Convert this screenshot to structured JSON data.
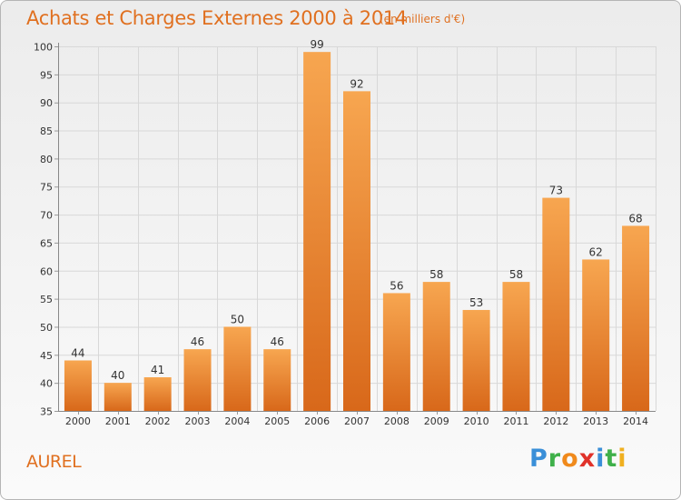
{
  "header": {
    "title": "Achats et Charges Externes 2000 à 2014",
    "subtitle": "(en milliers d'€)"
  },
  "commune": "AUREL",
  "brand": {
    "letters": [
      "P",
      "r",
      "o",
      "x",
      "i",
      "t",
      "i"
    ],
    "colors": [
      "#3a8fd8",
      "#3fb04a",
      "#f08a1c",
      "#e0322a",
      "#3a8fd8",
      "#3fb04a",
      "#f0b020"
    ]
  },
  "colors": {
    "bar_top": "#f7a650",
    "bar_bottom": "#d8681a",
    "text": "#333333",
    "accent": "#e07020",
    "grid": "#d8d8d8"
  },
  "chart_data": {
    "type": "bar",
    "categories": [
      "2000",
      "2001",
      "2002",
      "2003",
      "2004",
      "2005",
      "2006",
      "2007",
      "2008",
      "2009",
      "2010",
      "2011",
      "2012",
      "2013",
      "2014"
    ],
    "values": [
      44,
      40,
      41,
      46,
      50,
      46,
      99,
      92,
      56,
      58,
      53,
      58,
      73,
      62,
      68
    ],
    "yticks": [
      35,
      40,
      45,
      50,
      55,
      60,
      65,
      70,
      75,
      80,
      85,
      90,
      95,
      100
    ],
    "ylim": [
      35,
      100
    ],
    "grid": true,
    "data_labels": true
  }
}
